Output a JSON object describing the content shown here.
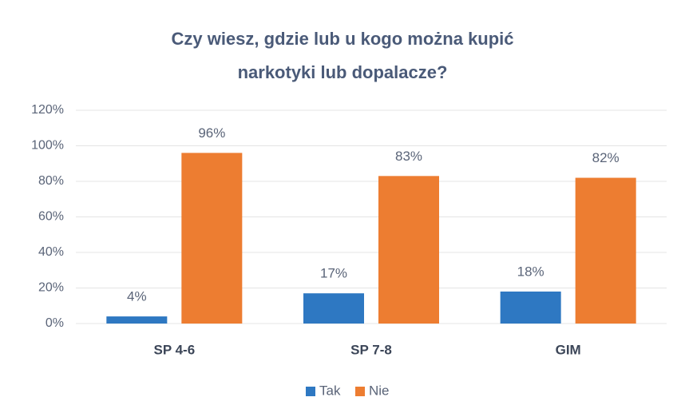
{
  "chart_data": {
    "type": "bar",
    "title": "Czy wiesz, gdzie lub u kogo można kupić\nnarkotyki lub dopalacze?",
    "categories": [
      "SP 4-6",
      "SP 7-8",
      "GIM"
    ],
    "series": [
      {
        "name": "Tak",
        "color": "#2e78c2",
        "values": [
          4,
          17,
          18
        ],
        "value_labels": [
          "4%",
          "17%",
          "18%"
        ]
      },
      {
        "name": "Nie",
        "color": "#ed7d31",
        "values": [
          96,
          83,
          82
        ],
        "value_labels": [
          "96%",
          "83%",
          "82%"
        ]
      }
    ],
    "ylim": [
      0,
      120
    ],
    "yticks": [
      {
        "value": 0,
        "label": "0%"
      },
      {
        "value": 20,
        "label": "20%"
      },
      {
        "value": 40,
        "label": "40%"
      },
      {
        "value": 60,
        "label": "60%"
      },
      {
        "value": 80,
        "label": "80%"
      },
      {
        "value": 100,
        "label": "100%"
      },
      {
        "value": 120,
        "label": "120%"
      }
    ],
    "grid": true,
    "legend": "bottom"
  }
}
